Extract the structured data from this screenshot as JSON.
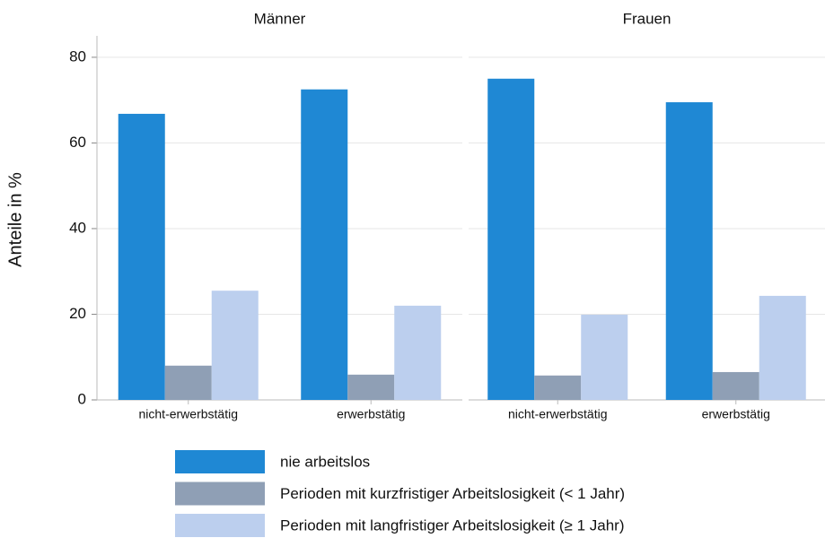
{
  "chart_data": [
    {
      "type": "bar",
      "title": "Männer",
      "ylabel": "Anteile in %",
      "categories": [
        "nicht-erwerbstätig",
        "erwerbstätig"
      ],
      "series": [
        {
          "name": "nie arbeitslos",
          "color": "#1f88d4",
          "values": [
            66.8,
            72.5
          ]
        },
        {
          "name": "Perioden mit kurzfristiger Arbeitslosigkeit (< 1 Jahr)",
          "color": "#8f9fb5",
          "values": [
            8,
            5.9
          ]
        },
        {
          "name": "Perioden mit langfristiger Arbeitslosigkeit (≥ 1 Jahr)",
          "color": "#bccfee",
          "values": [
            25.5,
            22
          ]
        }
      ],
      "ylim": [
        0,
        85
      ],
      "yticks": [
        0,
        20,
        40,
        60,
        80
      ],
      "grid": true
    },
    {
      "type": "bar",
      "title": "Frauen",
      "categories": [
        "nicht-erwerbstätig",
        "erwerbstätig"
      ],
      "series": [
        {
          "name": "nie arbeitslos",
          "color": "#1f88d4",
          "values": [
            75,
            69.5
          ]
        },
        {
          "name": "Perioden mit kurzfristiger Arbeitslosigkeit (< 1 Jahr)",
          "color": "#8f9fb5",
          "values": [
            5.7,
            6.5
          ]
        },
        {
          "name": "Perioden mit langfristiger Arbeitslosigkeit (≥ 1 Jahr)",
          "color": "#bccfee",
          "values": [
            19.9,
            24.3
          ]
        }
      ],
      "ylim": [
        0,
        85
      ],
      "yticks": [
        0,
        20,
        40,
        60,
        80
      ],
      "grid": true
    }
  ]
}
